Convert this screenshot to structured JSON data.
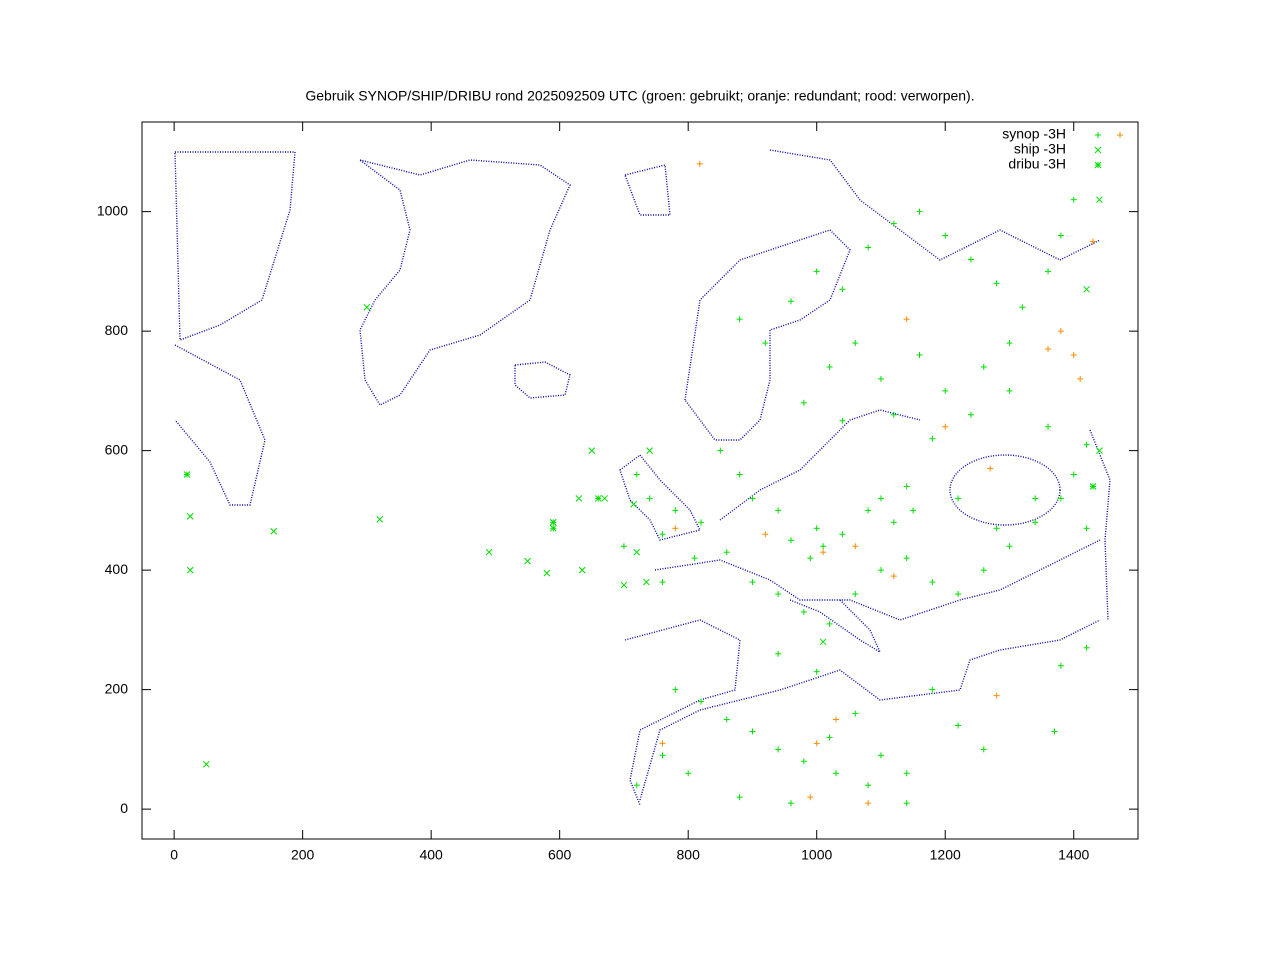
{
  "chart_data": {
    "type": "scatter",
    "title": "Gebruik SYNOP/SHIP/DRIBU rond 2025092509 UTC (groen: gebruikt; oranje: redundant; rood: verworpen).",
    "xlim": [
      -50,
      1500
    ],
    "ylim": [
      -50,
      1150
    ],
    "xticks": [
      0,
      200,
      400,
      600,
      800,
      1000,
      1200,
      1400
    ],
    "yticks": [
      0,
      200,
      400,
      600,
      800,
      1000
    ],
    "legend": "top-right",
    "series": [
      {
        "name": "synop -3H",
        "marker": "+",
        "groups": [
          {
            "color": "#00e000",
            "x": [
              880,
              920,
              960,
              1000,
              1040,
              1080,
              1120,
              1160,
              1200,
              1240,
              1280,
              1320,
              1360,
              1400,
              1380,
              1300,
              1260,
              1200,
              1160,
              1100,
              1060,
              1020,
              980,
              1040,
              1120,
              1180,
              1240,
              1300,
              1360,
              1420,
              1400,
              1340,
              1280,
              1220,
              1150,
              1120,
              1100,
              1140,
              1080,
              1040,
              1010,
              990,
              1000,
              960,
              940,
              900,
              880,
              850,
              820,
              780,
              760,
              740,
              720,
              700,
              860,
              900,
              940,
              980,
              1020,
              1060,
              1100,
              1140,
              1180,
              1220,
              1260,
              1300,
              1340,
              1380,
              1420,
              780,
              820,
              860,
              900,
              940,
              980,
              1020,
              1060,
              1100,
              1140,
              1180,
              1220,
              1260,
              720,
              760,
              800,
              880,
              960,
              1030,
              1080,
              1140,
              1420,
              1380,
              1370,
              940,
              1000,
              760,
              810
            ],
            "y": [
              820,
              780,
              850,
              900,
              870,
              940,
              980,
              1000,
              960,
              920,
              880,
              840,
              900,
              1020,
              960,
              780,
              740,
              700,
              760,
              720,
              780,
              740,
              680,
              650,
              660,
              620,
              660,
              700,
              640,
              610,
              560,
              520,
              470,
              520,
              500,
              480,
              520,
              540,
              500,
              460,
              440,
              420,
              470,
              450,
              500,
              520,
              560,
              600,
              480,
              500,
              460,
              520,
              560,
              440,
              430,
              380,
              360,
              330,
              310,
              360,
              400,
              420,
              380,
              360,
              400,
              440,
              480,
              520,
              470,
              200,
              180,
              150,
              130,
              100,
              80,
              120,
              160,
              90,
              60,
              200,
              140,
              100,
              40,
              90,
              60,
              20,
              10,
              60,
              40,
              10,
              270,
              240,
              130,
              260,
              230,
              380,
              420
            ]
          },
          {
            "color": "#ff8c00",
            "x": [
              818,
              1010,
              1060,
              920,
              780,
              1120,
              1280,
              1030,
              1000,
              760,
              1080,
              1410,
              1400,
              1380,
              1140,
              1200,
              1270,
              1360,
              1430,
              990
            ],
            "y": [
              1080,
              430,
              440,
              460,
              470,
              390,
              190,
              150,
              110,
              110,
              10,
              720,
              760,
              800,
              820,
              640,
              570,
              770,
              950,
              20
            ]
          }
        ]
      },
      {
        "name": "ship -3H",
        "marker": "x",
        "groups": [
          {
            "color": "#00e000",
            "x": [
              25,
              25,
              50,
              155,
              320,
              490,
              550,
              590,
              580,
              630,
              635,
              650,
              670,
              700,
              735,
              715,
              720,
              740,
              300,
              1010,
              1440,
              1440,
              1420
            ],
            "y": [
              490,
              400,
              75,
              465,
              485,
              430,
              415,
              480,
              395,
              520,
              400,
              600,
              520,
              375,
              380,
              510,
              430,
              600,
              840,
              280,
              1020,
              600,
              870
            ]
          }
        ]
      },
      {
        "name": "dribu -3H",
        "marker": "*",
        "groups": [
          {
            "color": "#00e000",
            "x": [
              590,
              590,
              20,
              660,
              1430
            ],
            "y": [
              480,
              470,
              560,
              520,
              540
            ]
          }
        ]
      }
    ]
  }
}
